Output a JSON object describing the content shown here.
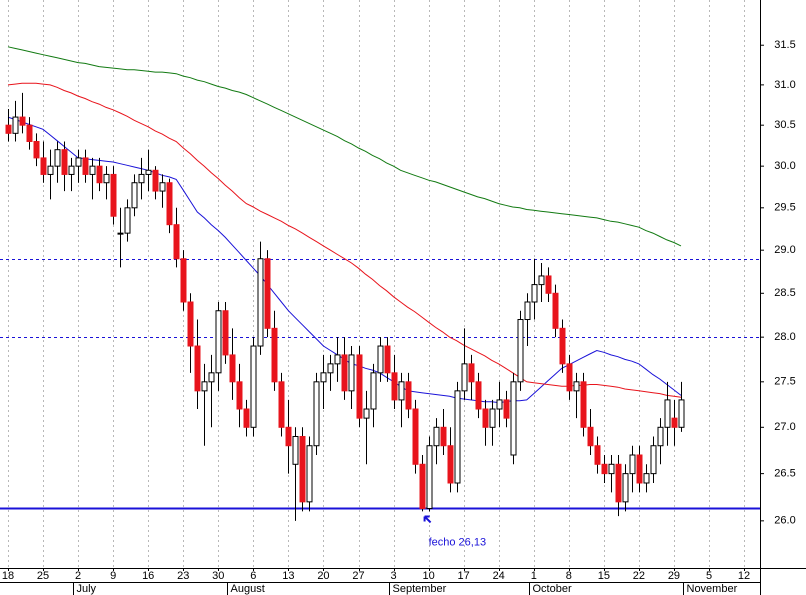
{
  "chart_data": {
    "type": "candlestick",
    "categories": [
      18,
      null,
      null,
      null,
      null,
      25,
      null,
      null,
      null,
      null,
      2,
      null,
      null,
      null,
      null,
      9,
      null,
      null,
      null,
      null,
      16,
      null,
      null,
      null,
      null,
      23,
      null,
      null,
      null,
      null,
      30,
      null,
      null,
      null,
      null,
      6,
      null,
      null,
      null,
      null,
      13,
      null,
      null,
      null,
      null,
      20,
      null,
      null,
      null,
      null,
      27,
      null,
      null,
      null,
      null,
      3,
      null,
      null,
      null,
      null,
      10,
      null,
      null,
      null,
      null,
      17,
      null,
      null,
      null,
      null,
      24,
      null,
      null,
      null,
      null,
      1,
      null,
      null,
      null,
      null,
      8,
      null,
      null,
      null,
      null,
      15,
      null,
      null,
      null,
      null,
      22,
      null,
      null,
      null,
      null,
      29,
      null,
      null,
      null,
      null,
      5,
      null,
      null,
      null,
      null,
      12,
      null,
      null
    ],
    "months": [
      {
        "label": "July",
        "index": 10
      },
      {
        "label": "August",
        "index": 32
      },
      {
        "label": "September",
        "index": 55
      },
      {
        "label": "October",
        "index": 75
      },
      {
        "label": "November",
        "index": 97
      }
    ],
    "open": [
      30.5,
      30.4,
      30.6,
      30.5,
      30.3,
      30.1,
      29.9,
      30.0,
      30.2,
      29.9,
      30.0,
      30.1,
      29.9,
      30.0,
      29.8,
      29.9,
      29.2,
      29.2,
      29.5,
      29.8,
      29.9,
      29.95,
      29.7,
      29.8,
      29.3,
      28.9,
      28.4,
      27.9,
      27.4,
      27.5,
      27.6,
      28.3,
      27.8,
      27.5,
      27.2,
      27.0,
      27.9,
      28.9,
      28.1,
      27.5,
      27.0,
      26.6,
      26.9,
      26.2,
      26.8,
      27.5,
      27.6,
      27.7,
      27.8,
      27.4,
      27.8,
      27.1,
      27.2,
      27.6,
      27.9,
      27.6,
      27.3,
      27.5,
      27.2,
      26.6,
      26.13,
      26.8,
      27.0,
      26.8,
      26.4,
      27.4,
      27.7,
      27.5,
      27.2,
      27.0,
      27.2,
      27.3,
      26.7,
      27.5,
      28.2,
      28.4,
      28.6,
      28.7,
      28.5,
      28.1,
      27.7,
      27.4,
      27.5,
      27.0,
      26.8,
      26.6,
      26.5,
      26.6,
      26.2,
      26.5,
      26.7,
      26.4,
      26.5,
      26.8,
      27.0,
      27.1,
      27.0,
      null,
      null,
      null,
      null,
      null,
      null,
      null,
      null,
      null,
      null,
      null
    ],
    "high": [
      30.7,
      30.8,
      30.9,
      30.6,
      30.4,
      30.3,
      30.2,
      30.3,
      30.3,
      30.1,
      30.2,
      30.2,
      30.1,
      30.1,
      30.0,
      30.0,
      29.5,
      29.6,
      29.9,
      30.1,
      30.2,
      30.0,
      29.9,
      29.85,
      29.5,
      29.0,
      28.5,
      28.2,
      27.7,
      27.8,
      28.4,
      28.4,
      28.1,
      27.7,
      27.3,
      28.0,
      29.1,
      29.0,
      28.3,
      27.6,
      27.3,
      27.0,
      27.0,
      26.9,
      27.6,
      27.8,
      27.8,
      28.0,
      28.0,
      27.9,
      27.9,
      27.4,
      27.7,
      28.0,
      28.0,
      27.8,
      27.6,
      27.6,
      27.3,
      26.7,
      26.9,
      27.1,
      27.2,
      27.0,
      27.5,
      28.1,
      27.8,
      27.6,
      27.3,
      27.3,
      27.5,
      27.4,
      27.6,
      28.3,
      28.5,
      28.9,
      28.85,
      28.8,
      28.6,
      28.2,
      27.8,
      27.6,
      27.6,
      27.2,
      26.9,
      26.7,
      26.7,
      26.7,
      26.6,
      26.8,
      26.8,
      26.6,
      26.9,
      27.1,
      27.5,
      27.3,
      27.5,
      null,
      null,
      null,
      null,
      null,
      null,
      null,
      null,
      null,
      null,
      null
    ],
    "low": [
      30.3,
      30.3,
      30.4,
      30.2,
      30.0,
      29.8,
      29.6,
      29.8,
      29.7,
      29.7,
      29.8,
      29.8,
      29.6,
      29.7,
      29.6,
      29.3,
      28.8,
      29.1,
      29.4,
      29.6,
      29.7,
      29.6,
      29.5,
      29.2,
      28.8,
      28.3,
      27.6,
      27.2,
      26.8,
      27.0,
      27.4,
      27.7,
      27.3,
      27.0,
      26.9,
      26.9,
      27.8,
      28.0,
      27.4,
      26.9,
      26.5,
      26.0,
      26.1,
      26.1,
      26.7,
      27.2,
      27.4,
      27.5,
      27.3,
      27.2,
      27.0,
      26.6,
      27.0,
      27.5,
      27.5,
      27.2,
      27.0,
      27.1,
      26.5,
      26.1,
      26.1,
      26.6,
      26.7,
      26.3,
      26.3,
      27.3,
      27.3,
      27.1,
      26.8,
      26.8,
      27.0,
      27.0,
      26.6,
      27.4,
      27.9,
      28.2,
      28.4,
      28.4,
      28.0,
      27.6,
      27.3,
      27.1,
      26.9,
      26.7,
      26.5,
      26.4,
      26.3,
      26.05,
      26.1,
      26.3,
      26.3,
      26.3,
      26.4,
      26.6,
      26.8,
      26.8,
      26.95,
      null,
      null,
      null,
      null,
      null,
      null,
      null,
      null,
      null,
      null,
      null
    ],
    "close": [
      30.4,
      30.6,
      30.5,
      30.3,
      30.1,
      29.9,
      30.0,
      30.2,
      29.9,
      30.0,
      30.1,
      29.9,
      30.0,
      29.8,
      29.9,
      29.4,
      29.2,
      29.5,
      29.8,
      29.9,
      29.95,
      29.7,
      29.8,
      29.3,
      28.9,
      28.4,
      27.9,
      27.4,
      27.5,
      27.6,
      28.3,
      27.8,
      27.5,
      27.2,
      27.0,
      27.9,
      28.9,
      28.1,
      27.5,
      27.0,
      26.8,
      26.9,
      26.2,
      26.8,
      27.5,
      27.6,
      27.7,
      27.8,
      27.4,
      27.8,
      27.1,
      27.2,
      27.6,
      27.9,
      27.6,
      27.3,
      27.5,
      27.2,
      26.6,
      26.13,
      26.8,
      27.0,
      26.8,
      26.4,
      27.4,
      27.7,
      27.5,
      27.2,
      27.0,
      27.2,
      27.3,
      27.1,
      27.5,
      28.2,
      28.4,
      28.6,
      28.7,
      28.5,
      28.1,
      27.7,
      27.4,
      27.5,
      27.0,
      26.8,
      26.6,
      26.5,
      26.6,
      26.2,
      26.5,
      26.7,
      26.4,
      26.5,
      26.8,
      27.0,
      27.3,
      27.0,
      27.3,
      null,
      null,
      null,
      null,
      null,
      null,
      null,
      null,
      null,
      null,
      null
    ],
    "up_color": "#ffffff",
    "down_color": "#e8141c",
    "wick_color": "#000000",
    "moving_averages": [
      {
        "color": "#1a12d8",
        "values": [
          30.6,
          30.57,
          30.54,
          30.51,
          30.48,
          30.45,
          30.38,
          30.31,
          30.24,
          30.17,
          30.1,
          30.09,
          30.08,
          30.07,
          30.06,
          30.05,
          30.03,
          30.01,
          29.99,
          29.97,
          29.95,
          29.92,
          29.89,
          29.87,
          29.84,
          29.71,
          29.58,
          29.45,
          29.38,
          29.3,
          29.23,
          29.15,
          29.06,
          28.97,
          28.88,
          28.79,
          28.7,
          28.6,
          28.5,
          28.4,
          28.3,
          28.22,
          28.14,
          28.06,
          27.98,
          27.9,
          27.85,
          27.8,
          27.75,
          27.7,
          27.68,
          27.65,
          27.63,
          27.6,
          27.55,
          27.5,
          27.45,
          27.4,
          27.39,
          27.38,
          27.37,
          27.36,
          27.35,
          27.34,
          27.32,
          27.31,
          27.3,
          27.29,
          27.28,
          27.28,
          27.27,
          27.28,
          27.29,
          27.29,
          27.3,
          27.37,
          27.44,
          27.51,
          27.58,
          27.65,
          27.69,
          27.73,
          27.77,
          27.81,
          27.85,
          27.83,
          27.8,
          27.78,
          27.75,
          27.73,
          27.7,
          27.64,
          27.58,
          27.53,
          27.47,
          27.41,
          27.35,
          null,
          null,
          null,
          null,
          null,
          null,
          null,
          null,
          null,
          null,
          null
        ]
      },
      {
        "color": "#e8141c",
        "values": [
          31.0,
          31.01,
          31.02,
          31.02,
          31.02,
          31.01,
          31.0,
          30.97,
          30.93,
          30.9,
          30.86,
          30.83,
          30.79,
          30.76,
          30.72,
          30.69,
          30.65,
          30.61,
          30.56,
          30.52,
          30.48,
          30.43,
          30.39,
          30.34,
          30.3,
          30.22,
          30.15,
          30.07,
          30.0,
          29.92,
          29.85,
          29.77,
          29.7,
          29.62,
          29.55,
          29.51,
          29.46,
          29.42,
          29.38,
          29.34,
          29.29,
          29.25,
          29.2,
          29.15,
          29.1,
          29.05,
          29.0,
          28.95,
          28.9,
          28.85,
          28.79,
          28.72,
          28.66,
          28.59,
          28.53,
          28.46,
          28.4,
          28.34,
          28.29,
          28.23,
          28.17,
          28.11,
          28.06,
          28.0,
          27.96,
          27.91,
          27.87,
          27.83,
          27.79,
          27.74,
          27.7,
          27.65,
          27.6,
          27.55,
          27.5,
          27.49,
          27.48,
          27.47,
          27.46,
          27.45,
          27.45,
          27.46,
          27.46,
          27.47,
          27.47,
          27.46,
          27.45,
          27.44,
          27.42,
          27.41,
          27.4,
          27.39,
          27.38,
          27.37,
          27.35,
          27.34,
          27.33,
          null,
          null,
          null,
          null,
          null,
          null,
          null,
          null,
          null,
          null,
          null
        ]
      },
      {
        "color": "#127a12",
        "values": [
          31.48,
          31.46,
          31.44,
          31.42,
          31.4,
          31.38,
          31.36,
          31.34,
          31.32,
          31.3,
          31.28,
          31.27,
          31.25,
          31.23,
          31.22,
          31.21,
          31.2,
          31.19,
          31.19,
          31.18,
          31.17,
          31.16,
          31.16,
          31.15,
          31.14,
          31.11,
          31.09,
          31.06,
          31.04,
          31.01,
          30.98,
          30.96,
          30.93,
          30.91,
          30.88,
          30.84,
          30.8,
          30.76,
          30.72,
          30.68,
          30.64,
          30.6,
          30.56,
          30.52,
          30.48,
          30.44,
          30.4,
          30.36,
          30.31,
          30.27,
          30.22,
          30.18,
          30.13,
          30.09,
          30.04,
          30.0,
          29.95,
          29.92,
          29.89,
          29.86,
          29.83,
          29.81,
          29.78,
          29.75,
          29.72,
          29.69,
          29.66,
          29.63,
          29.61,
          29.58,
          29.55,
          29.53,
          29.51,
          29.5,
          29.48,
          29.47,
          29.46,
          29.45,
          29.44,
          29.43,
          29.42,
          29.41,
          29.4,
          29.39,
          29.38,
          29.36,
          29.34,
          29.33,
          29.31,
          29.29,
          29.27,
          29.23,
          29.2,
          29.16,
          29.12,
          29.09,
          29.05,
          null,
          null,
          null,
          null,
          null,
          null,
          null,
          null,
          null,
          null,
          null
        ]
      }
    ],
    "hlines": [
      {
        "value": 28.9,
        "style": "dashed",
        "color": "#1a12d8"
      },
      {
        "value": 28.0,
        "style": "dashed",
        "color": "#1a12d8"
      },
      {
        "value": 26.13,
        "style": "solid",
        "color": "#1a12d8"
      }
    ],
    "annotation": {
      "text": "fecho 26,13",
      "value": 26.13,
      "index": 59,
      "color": "#1a12d8"
    },
    "ylim": [
      25.51,
      32.08
    ],
    "log_scale": true,
    "yticks": [
      {
        "value": 26,
        "label": "26.0"
      },
      26.5,
      {
        "value": 27,
        "label": "27.0"
      },
      27.5,
      {
        "value": 28,
        "label": "28.0"
      },
      28.5,
      {
        "value": 29,
        "label": "29.0"
      },
      29.5,
      {
        "value": 30,
        "label": "30.0"
      },
      30.5,
      {
        "value": 31,
        "label": "31.0"
      },
      31.5
    ],
    "grid": true
  }
}
